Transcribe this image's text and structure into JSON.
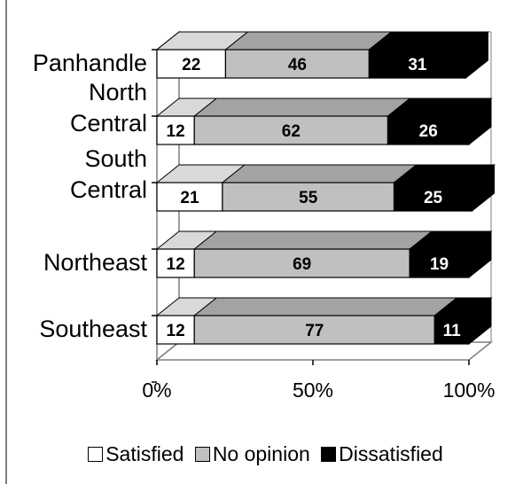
{
  "chart_data": {
    "type": "bar",
    "orientation": "horizontal",
    "stacked": "percent",
    "style": "3d",
    "categories": [
      "Panhandle",
      "North Central",
      "South Central",
      "Northeast",
      "Southeast"
    ],
    "category_lines": [
      [
        "Panhandle"
      ],
      [
        "North",
        "Central"
      ],
      [
        "South",
        "Central"
      ],
      [
        "Northeast"
      ],
      [
        "Southeast"
      ]
    ],
    "series": [
      {
        "name": "Satisfied",
        "values": [
          22,
          12,
          21,
          12,
          12
        ],
        "color": "#ffffff",
        "label_color": "#000000"
      },
      {
        "name": "No opinion",
        "values": [
          46,
          62,
          55,
          69,
          77
        ],
        "color": "#c0c0c0",
        "label_color": "#000000"
      },
      {
        "name": "Dissatisfied",
        "values": [
          31,
          26,
          25,
          19,
          11
        ],
        "color": "#000000",
        "label_color": "#ffffff"
      }
    ],
    "xticks": [
      "0%",
      "50%",
      "100%"
    ],
    "xlim": [
      0,
      100
    ],
    "grid": false,
    "legend": "bottom",
    "title": "",
    "xlabel": "",
    "ylabel": ""
  }
}
